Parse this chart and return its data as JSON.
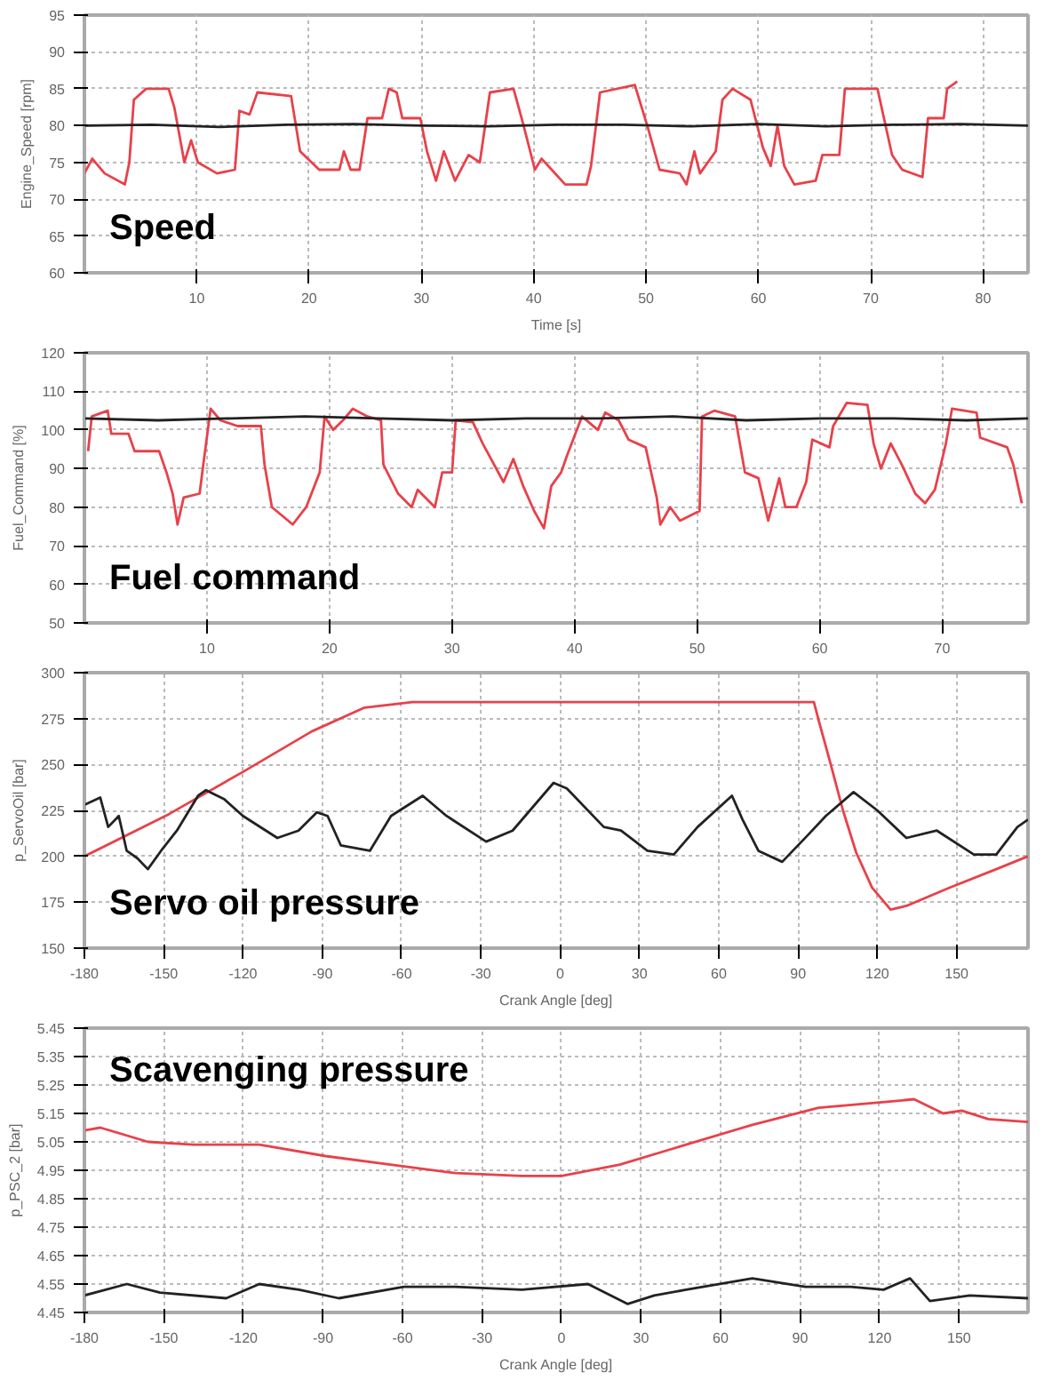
{
  "chart_data": [
    {
      "type": "line",
      "title": "Speed",
      "xlabel": "Time [s]",
      "ylabel": "Engine_Speed [rpm]",
      "xlim": [
        0,
        84
      ],
      "ylim": [
        60,
        95
      ],
      "xticks": [
        10,
        20,
        30,
        40,
        50,
        60,
        70,
        80
      ],
      "yticks": [
        60,
        65,
        70,
        75,
        80,
        85,
        90,
        95
      ],
      "grid": true,
      "line_style": "solid",
      "series": [
        {
          "color": "#e8414a",
          "x": [
            0,
            0.7,
            1.8,
            3.6,
            4,
            4.4,
            5.5,
            7.5,
            8,
            8.9,
            9.5,
            10.1,
            11.8,
            13.4,
            13.8,
            14.7,
            15.4,
            18.4,
            19.2,
            20.9,
            22.7,
            23.1,
            23.7,
            24.5,
            25.2,
            26.5,
            27.1,
            27.8,
            28.3,
            29.9,
            30.5,
            31.3,
            32,
            33,
            34.2,
            35.2,
            36.1,
            38.2,
            39.1,
            40.1,
            40.7,
            41.6,
            42.8,
            44.7,
            45.1,
            45.9,
            49,
            50.2,
            51.2,
            53,
            53.6,
            54.3,
            54.8,
            56.2,
            56.8,
            57.7,
            59.3,
            60.4,
            61.1,
            61.7,
            62.3,
            63.2,
            65.1,
            65.7,
            67.2,
            67.7,
            70.6,
            71.9,
            72.8,
            74.6,
            75.1,
            76.5,
            76.8,
            77.7
          ],
          "values": [
            73.5,
            75.5,
            73.5,
            72,
            75,
            83.5,
            85,
            85,
            82.5,
            75,
            78,
            75,
            73.5,
            74,
            82,
            81.5,
            84.5,
            84,
            76.5,
            74,
            74,
            76.5,
            74,
            74,
            81,
            81,
            85,
            84.5,
            81,
            81,
            76.5,
            72.5,
            76.5,
            72.5,
            76,
            75,
            84.5,
            85,
            80,
            74,
            75.5,
            74,
            72,
            72,
            74.5,
            84.5,
            85.5,
            79.5,
            74,
            73.5,
            72,
            76.5,
            73.5,
            76.5,
            83.5,
            85,
            83.5,
            77,
            74.5,
            80,
            74.5,
            72,
            72.5,
            76,
            76,
            85,
            85,
            76,
            74,
            73,
            81,
            81,
            85,
            86
          ]
        },
        {
          "color": "#222222",
          "x": [
            0,
            6,
            12,
            18,
            24,
            30,
            36,
            42,
            48,
            54,
            60,
            66,
            72,
            78,
            84
          ],
          "values": [
            80,
            80.1,
            79.8,
            80.1,
            80.2,
            80,
            79.9,
            80.1,
            80.1,
            79.9,
            80.2,
            79.9,
            80.1,
            80.2,
            80
          ]
        }
      ]
    },
    {
      "type": "line",
      "title": "Fuel command",
      "ylabel": "Fuel_Command [%]",
      "xlim": [
        0,
        77
      ],
      "ylim": [
        50,
        120
      ],
      "xticks": [
        10,
        20,
        30,
        40,
        50,
        60,
        70
      ],
      "yticks": [
        50,
        60,
        70,
        80,
        90,
        100,
        110,
        120
      ],
      "grid": true,
      "line_style": "solid",
      "series": [
        {
          "color": "#e8414a",
          "x": [
            0.3,
            0.6,
            1.9,
            2.2,
            3.6,
            4.1,
            6.1,
            6.7,
            7.2,
            7.6,
            8.1,
            9.4,
            9.7,
            10.3,
            11.1,
            12.5,
            14.4,
            14.7,
            15.3,
            17,
            18.1,
            19.2,
            19.6,
            20.3,
            21.1,
            21.9,
            23.1,
            24.2,
            24.4,
            25.6,
            26.7,
            27.2,
            28.6,
            29.2,
            30,
            30.3,
            31.7,
            32.5,
            34.2,
            35,
            35.8,
            36.7,
            37.5,
            38.1,
            38.9,
            39.4,
            40.6,
            41.9,
            42.5,
            43.6,
            44.4,
            45.8,
            46.7,
            47,
            47.8,
            48.6,
            50.2,
            50.4,
            51.4,
            53.1,
            53.9,
            55,
            55.8,
            56.7,
            57.2,
            58.1,
            58.9,
            59.4,
            60.8,
            61.1,
            62.2,
            63.9,
            64.4,
            65,
            65.8,
            66.7,
            67.8,
            68.6,
            69.4,
            70.3,
            70.8,
            72.8,
            73.1,
            75.3,
            75.8,
            76.5
          ],
          "values": [
            94.5,
            103.5,
            105,
            99,
            99,
            94.5,
            94.5,
            89,
            83.5,
            75.5,
            82.5,
            83.5,
            91,
            105.5,
            102.5,
            101,
            101,
            91,
            80,
            75.5,
            80,
            89,
            103.5,
            100,
            102.5,
            105.5,
            103.5,
            102.5,
            91,
            83.5,
            80,
            84.5,
            80,
            89,
            89,
            102.5,
            102,
            96.5,
            86.5,
            92.5,
            85.5,
            79,
            74.5,
            85.5,
            89,
            93.5,
            103.5,
            100,
            104.5,
            102.5,
            97.5,
            95.5,
            82.5,
            75.5,
            80,
            76.5,
            79,
            103.5,
            105,
            103.5,
            89,
            87.5,
            76.5,
            87.5,
            80,
            80,
            86.5,
            97.5,
            95.5,
            101,
            107,
            106.5,
            96.5,
            90,
            96.5,
            91,
            83.5,
            81,
            84.5,
            96.5,
            105.5,
            104.5,
            98,
            95.5,
            91,
            81
          ]
        },
        {
          "color": "#222222",
          "x": [
            0,
            6,
            12,
            18,
            24,
            30,
            36,
            42,
            48,
            54,
            60,
            66,
            72,
            77
          ],
          "values": [
            103,
            102.5,
            103,
            103.5,
            103,
            102.5,
            103,
            103,
            103.5,
            102.5,
            103,
            103,
            102.5,
            103
          ]
        }
      ]
    },
    {
      "type": "line",
      "title": "Servo oil pressure",
      "xlabel": "Crank Angle [deg]",
      "ylabel": "p_ServoOil [bar]",
      "xlim": [
        -180,
        177
      ],
      "ylim": [
        150,
        300
      ],
      "xticks": [
        -180,
        -150,
        -120,
        -90,
        -60,
        -30,
        0,
        30,
        60,
        90,
        120,
        150
      ],
      "yticks": [
        150,
        175,
        200,
        225,
        250,
        275,
        300
      ],
      "grid": true,
      "line_style": "solid",
      "series": [
        {
          "color": "#e8414a",
          "x": [
            -180,
            -148,
            -120,
            -94,
            -74,
            -56,
            96,
            98,
            102,
            107,
            112,
            118,
            125,
            131,
            147.5,
            165,
            177
          ],
          "values": [
            200,
            223,
            246,
            268,
            281,
            284,
            284,
            273,
            252,
            225,
            202,
            183,
            171,
            173,
            183,
            193,
            200
          ]
        },
        {
          "color": "#222222",
          "x": [
            -180,
            -174,
            -171,
            -167,
            -164,
            -160,
            -156,
            -151,
            -145,
            -137,
            -134,
            -127,
            -120,
            -107,
            -99,
            -92,
            -88,
            -83,
            -72,
            -64,
            -52,
            -43,
            -28,
            -18,
            -2.5,
            2.5,
            16.5,
            23,
            33,
            43,
            52,
            65,
            69,
            75,
            84,
            94,
            100.5,
            111,
            120,
            131,
            142.5,
            156.5,
            165,
            173,
            177
          ],
          "values": [
            228,
            232,
            216,
            222,
            203,
            199,
            193,
            203,
            214,
            233,
            236,
            231,
            222,
            210,
            214,
            224,
            222,
            206,
            203,
            222,
            233,
            222,
            208,
            214,
            240,
            237,
            216,
            214,
            203,
            201,
            216,
            233,
            220,
            203,
            197,
            212,
            222,
            235,
            225,
            210,
            214,
            201,
            201,
            216,
            220
          ]
        }
      ]
    },
    {
      "type": "line",
      "title": "Scavenging pressure",
      "xlabel": "Crank Angle [deg]",
      "ylabel": "p_PSC_2 [bar]",
      "xlim": [
        -180,
        176
      ],
      "ylim": [
        4.45,
        5.45
      ],
      "xticks": [
        -180,
        -150,
        -120,
        -90,
        -60,
        -30,
        0,
        30,
        60,
        90,
        120,
        150
      ],
      "yticks": [
        4.45,
        4.55,
        4.65,
        4.75,
        4.85,
        4.95,
        5.05,
        5.15,
        5.25,
        5.35,
        5.45
      ],
      "grid": true,
      "line_style": "solid",
      "series": [
        {
          "color": "#e8414a",
          "x": [
            -180,
            -174,
            -156,
            -139,
            -114,
            -89,
            -64.5,
            -40,
            -15,
            0,
            22,
            47,
            72,
            97,
            122,
            133,
            144,
            151,
            161,
            176
          ],
          "values": [
            5.09,
            5.1,
            5.05,
            5.04,
            5.04,
            5.0,
            4.97,
            4.94,
            4.93,
            4.93,
            4.97,
            5.04,
            5.11,
            5.17,
            5.19,
            5.2,
            5.15,
            5.16,
            5.13,
            5.12
          ]
        },
        {
          "color": "#222222",
          "x": [
            -180,
            -164,
            -151.5,
            -126.5,
            -114,
            -99,
            -84,
            -59.5,
            -40,
            -15,
            10,
            25,
            35,
            47,
            72,
            92,
            109,
            121.5,
            131.5,
            139,
            154,
            176
          ],
          "values": [
            4.51,
            4.55,
            4.52,
            4.5,
            4.55,
            4.53,
            4.5,
            4.54,
            4.54,
            4.53,
            4.55,
            4.48,
            4.51,
            4.53,
            4.57,
            4.54,
            4.54,
            4.53,
            4.57,
            4.49,
            4.51,
            4.5
          ]
        }
      ]
    }
  ]
}
